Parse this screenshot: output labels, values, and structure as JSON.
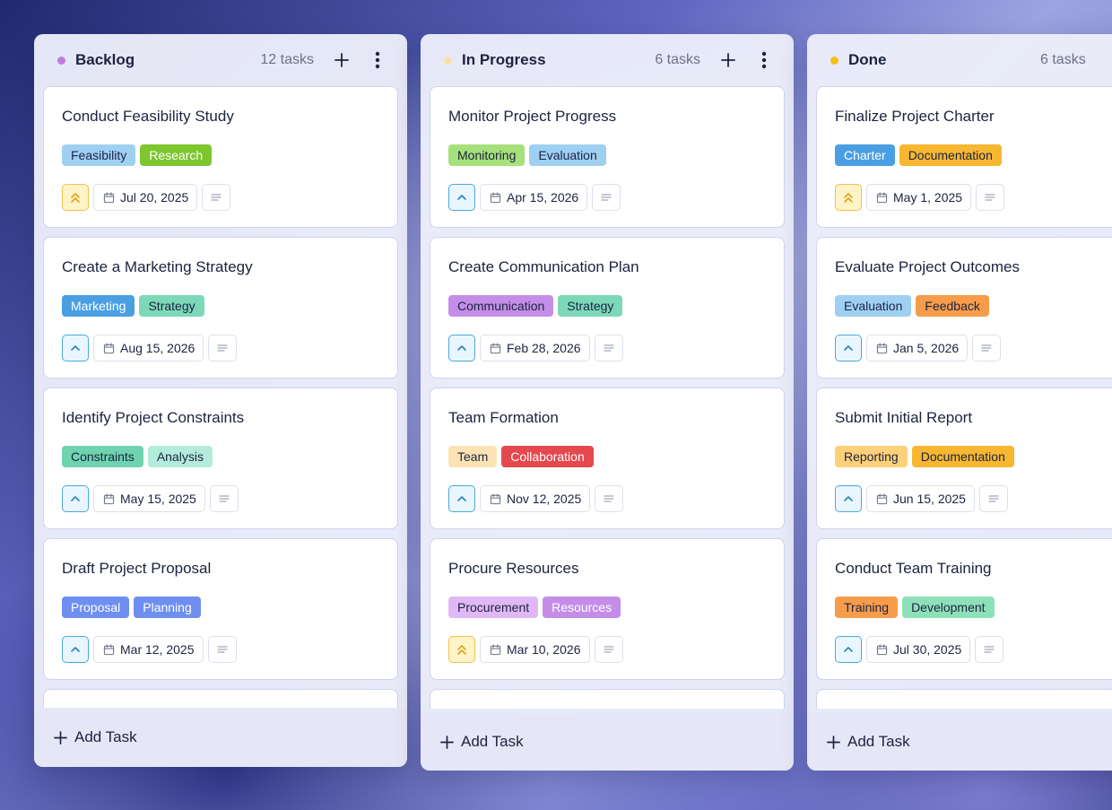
{
  "columns": [
    {
      "title": "Backlog",
      "count": "12 tasks",
      "dot_color": "#c07be0",
      "add_label": "Add Task",
      "cards": [
        {
          "title": "Conduct Feasibility Study",
          "tags": [
            {
              "label": "Feasibility",
              "color": "#9fd0f2"
            },
            {
              "label": "Research",
              "color": "#7dc62e"
            }
          ],
          "priority": "high",
          "date": "Jul 20, 2025"
        },
        {
          "title": "Create a Marketing Strategy",
          "tags": [
            {
              "label": "Marketing",
              "color": "#4a9fe3"
            },
            {
              "label": "Strategy",
              "color": "#7dd8b8"
            }
          ],
          "priority": "medium",
          "date": "Aug 15, 2026"
        },
        {
          "title": "Identify Project Constraints",
          "tags": [
            {
              "label": "Constraints",
              "color": "#6fd3b0"
            },
            {
              "label": "Analysis",
              "color": "#b4ecdc"
            }
          ],
          "priority": "medium",
          "date": "May 15, 2025"
        },
        {
          "title": "Draft Project Proposal",
          "tags": [
            {
              "label": "Proposal",
              "color": "#6e8ff0"
            },
            {
              "label": "Planning",
              "color": "#6e8ff0"
            }
          ],
          "priority": "medium",
          "date": "Mar 12, 2025"
        }
      ]
    },
    {
      "title": "In Progress",
      "count": "6 tasks",
      "dot_color": "#f7dfa6",
      "add_label": "Add Task",
      "cards": [
        {
          "title": "Monitor Project Progress",
          "tags": [
            {
              "label": "Monitoring",
              "color": "#a6e07a"
            },
            {
              "label": "Evaluation",
              "color": "#9fd0f2"
            }
          ],
          "priority": "medium",
          "date": "Apr 15, 2026"
        },
        {
          "title": "Create Communication Plan",
          "tags": [
            {
              "label": "Communication",
              "color": "#c48ee8"
            },
            {
              "label": "Strategy",
              "color": "#7dd8b8"
            }
          ],
          "priority": "medium",
          "date": "Feb 28, 2026"
        },
        {
          "title": "Team Formation",
          "tags": [
            {
              "label": "Team",
              "color": "#fde2b4"
            },
            {
              "label": "Collaboration",
              "color": "#e5484d"
            }
          ],
          "priority": "medium",
          "date": "Nov 12, 2025"
        },
        {
          "title": "Procure Resources",
          "tags": [
            {
              "label": "Procurement",
              "color": "#e0b8f5"
            },
            {
              "label": "Resources",
              "color": "#c48ee8"
            }
          ],
          "priority": "high",
          "date": "Mar 10, 2026"
        }
      ]
    },
    {
      "title": "Done",
      "count": "6 tasks",
      "dot_color": "#f5c018",
      "add_label": "Add Task",
      "cards": [
        {
          "title": "Finalize Project Charter",
          "tags": [
            {
              "label": "Charter",
              "color": "#4a9fe3"
            },
            {
              "label": "Documentation",
              "color": "#f7b731"
            }
          ],
          "priority": "high",
          "date": "May 1, 2025"
        },
        {
          "title": "Evaluate Project Outcomes",
          "tags": [
            {
              "label": "Evaluation",
              "color": "#9fd0f2"
            },
            {
              "label": "Feedback",
              "color": "#f79c4a"
            }
          ],
          "priority": "medium",
          "date": "Jan 5, 2026"
        },
        {
          "title": "Submit Initial Report",
          "tags": [
            {
              "label": "Reporting",
              "color": "#fdd17a"
            },
            {
              "label": "Documentation",
              "color": "#f7b731"
            }
          ],
          "priority": "medium",
          "date": "Jun 15, 2025"
        },
        {
          "title": "Conduct Team Training",
          "tags": [
            {
              "label": "Training",
              "color": "#f79c4a"
            },
            {
              "label": "Development",
              "color": "#8ee0b8"
            }
          ],
          "priority": "medium",
          "date": "Jul 30, 2025"
        }
      ]
    }
  ],
  "tag_text_light": [
    "Research",
    "Marketing",
    "Proposal",
    "Planning",
    "Collaboration",
    "Charter",
    "Resources"
  ]
}
